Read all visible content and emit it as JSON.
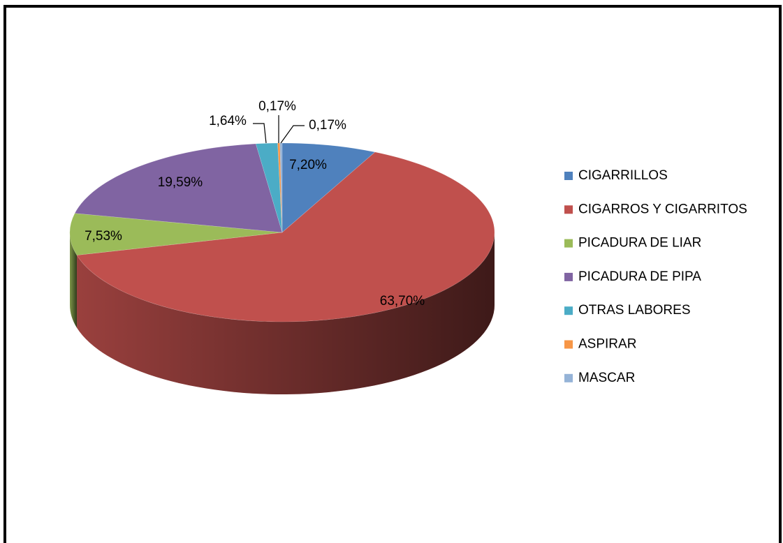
{
  "chart_data": {
    "type": "pie",
    "categories": [
      "CIGARRILLOS",
      "CIGARROS Y CIGARRITOS",
      "PICADURA DE LIAR",
      "PICADURA DE PIPA",
      "OTRAS LABORES",
      "ASPIRAR",
      "MASCAR"
    ],
    "values": [
      7.2,
      63.7,
      7.53,
      19.59,
      1.64,
      0.17,
      0.17
    ],
    "value_labels": [
      "7,20%",
      "63,70%",
      "7,53%",
      "19,59%",
      "1,64%",
      "0,17%",
      "0,17%"
    ],
    "colors": [
      "#4f81bd",
      "#c0504d",
      "#9bbb59",
      "#8064a2",
      "#4bacc6",
      "#f79646",
      "#95b3d7"
    ],
    "legend": "right"
  }
}
